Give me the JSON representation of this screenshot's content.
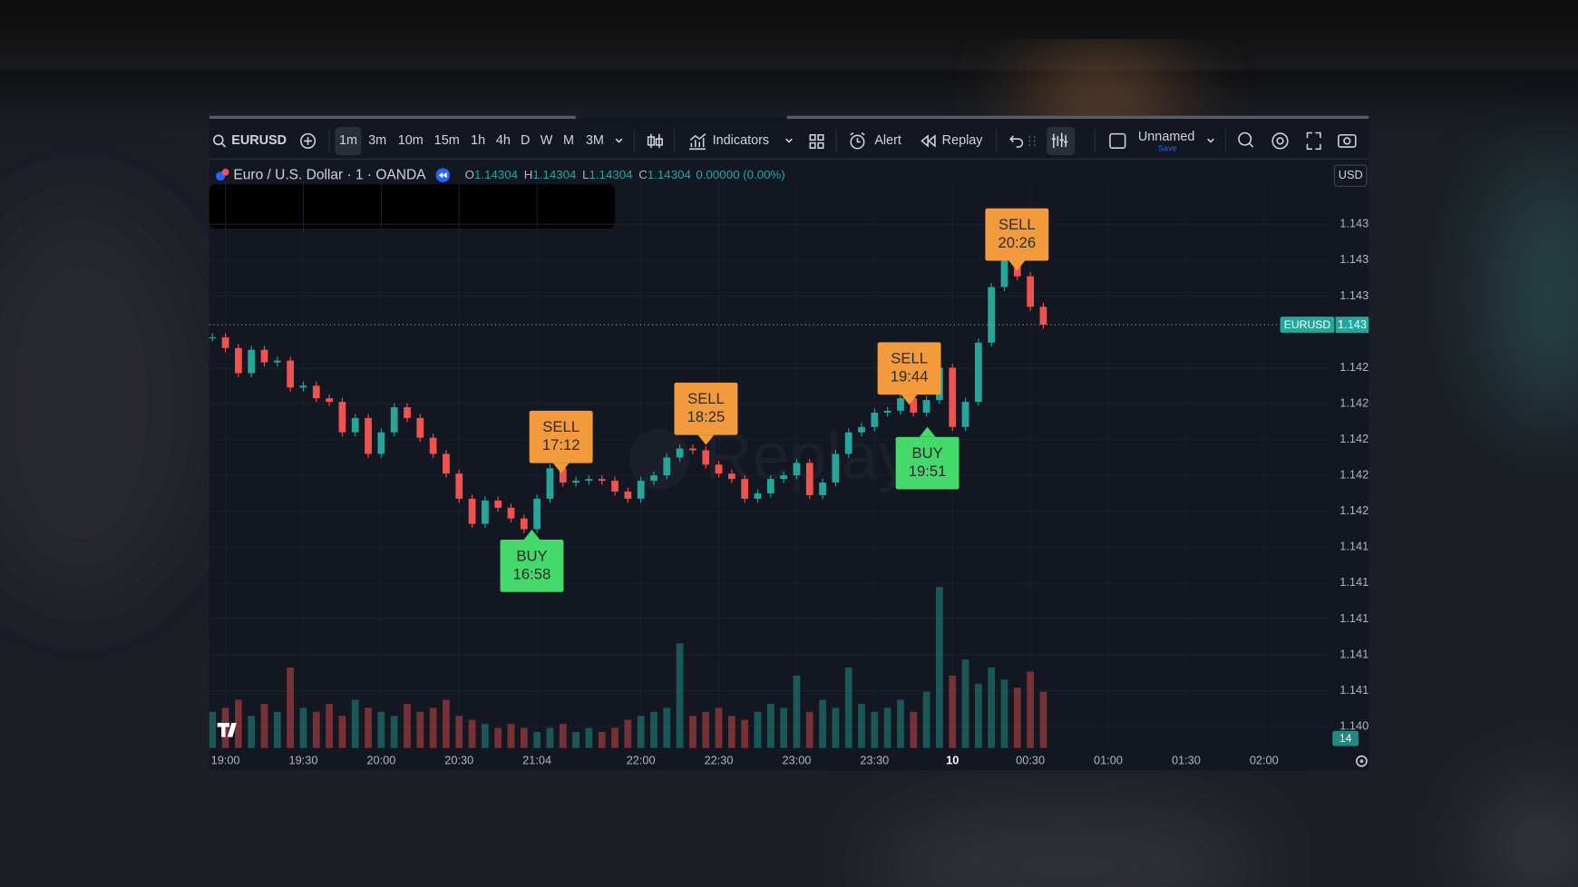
{
  "toolbar": {
    "symbol": "EURUSD",
    "intervals": [
      "1m",
      "3m",
      "10m",
      "15m",
      "1h",
      "4h",
      "D",
      "W",
      "M",
      "3M"
    ],
    "indicators": "Indicators",
    "alert": "Alert",
    "replay": "Replay",
    "layout": "Unnamed",
    "save": "Save"
  },
  "legend": {
    "name": "Euro / U.S. Dollar · 1 · OANDA",
    "ohlc": [
      {
        "label": "O",
        "value": "1.14304"
      },
      {
        "label": "H",
        "value": "1.14304"
      },
      {
        "label": "L",
        "value": "1.14304"
      },
      {
        "label": "C",
        "value": "1.14304"
      }
    ],
    "change": "0.00000 (0.00%)"
  },
  "currency": "USD",
  "watermark": "Replay",
  "signals": [
    {
      "action": "BUY",
      "time": "16:58"
    },
    {
      "action": "SELL",
      "time": "17:12"
    },
    {
      "action": "SELL",
      "time": "18:25"
    },
    {
      "action": "SELL",
      "time": "19:44"
    },
    {
      "action": "BUY",
      "time": "19:51"
    },
    {
      "action": "SELL",
      "time": "20:26"
    }
  ],
  "chart_data": {
    "type": "candlestick",
    "x": [
      -1,
      0,
      1,
      2,
      3,
      4,
      5,
      6,
      7,
      8,
      9,
      10,
      11,
      12,
      13,
      14,
      15,
      16,
      17,
      18,
      19,
      20,
      21,
      22,
      23,
      24,
      25,
      26,
      27,
      28,
      29,
      30,
      31,
      32,
      33,
      34,
      35,
      36,
      37,
      38,
      39,
      40,
      41,
      42,
      43,
      44,
      45,
      46,
      47,
      48,
      49,
      50,
      51,
      52,
      53,
      54,
      55,
      56,
      57,
      58,
      59,
      60,
      61,
      62,
      63
    ],
    "close": [
      1.14257,
      1.14251,
      1.14237,
      1.1425,
      1.14243,
      1.14244,
      1.14229,
      1.1423,
      1.14223,
      1.14221,
      1.14204,
      1.14212,
      1.14192,
      1.14204,
      1.14218,
      1.14212,
      1.14201,
      1.14192,
      1.14181,
      1.14167,
      1.14153,
      1.14166,
      1.14162,
      1.14156,
      1.1415,
      1.14167,
      1.14184,
      1.14176,
      1.14177,
      1.14178,
      1.14177,
      1.14171,
      1.14167,
      1.14177,
      1.1418,
      1.1419,
      1.14195,
      1.14194,
      1.14186,
      1.14181,
      1.14178,
      1.14167,
      1.1417,
      1.14178,
      1.1418,
      1.14187,
      1.14169,
      1.14176,
      1.14192,
      1.14204,
      1.14207,
      1.14215,
      1.14216,
      1.14223,
      1.14215,
      1.14222,
      1.1424,
      1.14207,
      1.14221,
      1.14254,
      1.14285,
      1.14308,
      1.14291,
      1.14274,
      1.14264
    ],
    "volume": [
      9,
      10,
      12,
      8,
      11,
      9,
      20,
      10,
      9,
      11,
      8,
      12,
      10,
      9,
      8,
      11,
      9,
      10,
      12,
      8,
      7,
      6,
      5,
      6,
      5,
      4,
      5,
      6,
      4,
      5,
      4,
      5,
      7,
      8,
      9,
      10,
      26,
      8,
      9,
      10,
      8,
      7,
      9,
      11,
      10,
      18,
      9,
      12,
      10,
      20,
      11,
      9,
      10,
      12,
      9,
      14,
      40,
      18,
      22,
      16,
      20,
      17,
      15,
      19,
      14
    ],
    "volume_ylim": [
      0,
      60
    ],
    "xlim": [
      -1.24,
      84.96
    ],
    "ylim": [
      1.14028,
      1.14344
    ],
    "xticks": [
      {
        "value": 0,
        "label": "19:00"
      },
      {
        "value": 6,
        "label": "19:30"
      },
      {
        "value": 12,
        "label": "20:00"
      },
      {
        "value": 18,
        "label": "20:30"
      },
      {
        "value": 24,
        "label": "21:04"
      },
      {
        "value": 32,
        "label": "22:00"
      },
      {
        "value": 38,
        "label": "22:30"
      },
      {
        "value": 44,
        "label": "23:00"
      },
      {
        "value": 50,
        "label": "23:30"
      },
      {
        "value": 56,
        "label": "10",
        "bold": true
      },
      {
        "value": 62,
        "label": "00:30"
      },
      {
        "value": 68,
        "label": "01:00"
      },
      {
        "value": 74,
        "label": "01:30"
      },
      {
        "value": 80,
        "label": "02:00"
      }
    ],
    "yticks": [
      {
        "value": 1.1432,
        "label": "1.143"
      },
      {
        "value": 1.143,
        "label": "1.143"
      },
      {
        "value": 1.1428,
        "label": "1.143"
      },
      {
        "value": 1.1424,
        "label": "1.142"
      },
      {
        "value": 1.1422,
        "label": "1.142"
      },
      {
        "value": 1.142,
        "label": "1.142"
      },
      {
        "value": 1.1418,
        "label": "1.142"
      },
      {
        "value": 1.1416,
        "label": "1.142"
      },
      {
        "value": 1.1414,
        "label": "1.141"
      },
      {
        "value": 1.1412,
        "label": "1.141"
      },
      {
        "value": 1.141,
        "label": "1.141"
      },
      {
        "value": 1.1408,
        "label": "1.141"
      },
      {
        "value": 1.1406,
        "label": "1.141"
      },
      {
        "value": 1.1404,
        "label": "1.140"
      }
    ],
    "grid": true,
    "up_color": "#26a69a",
    "down_color": "#ef5350",
    "price_line": {
      "symbol": "EURUSD",
      "label": "1.143"
    }
  }
}
